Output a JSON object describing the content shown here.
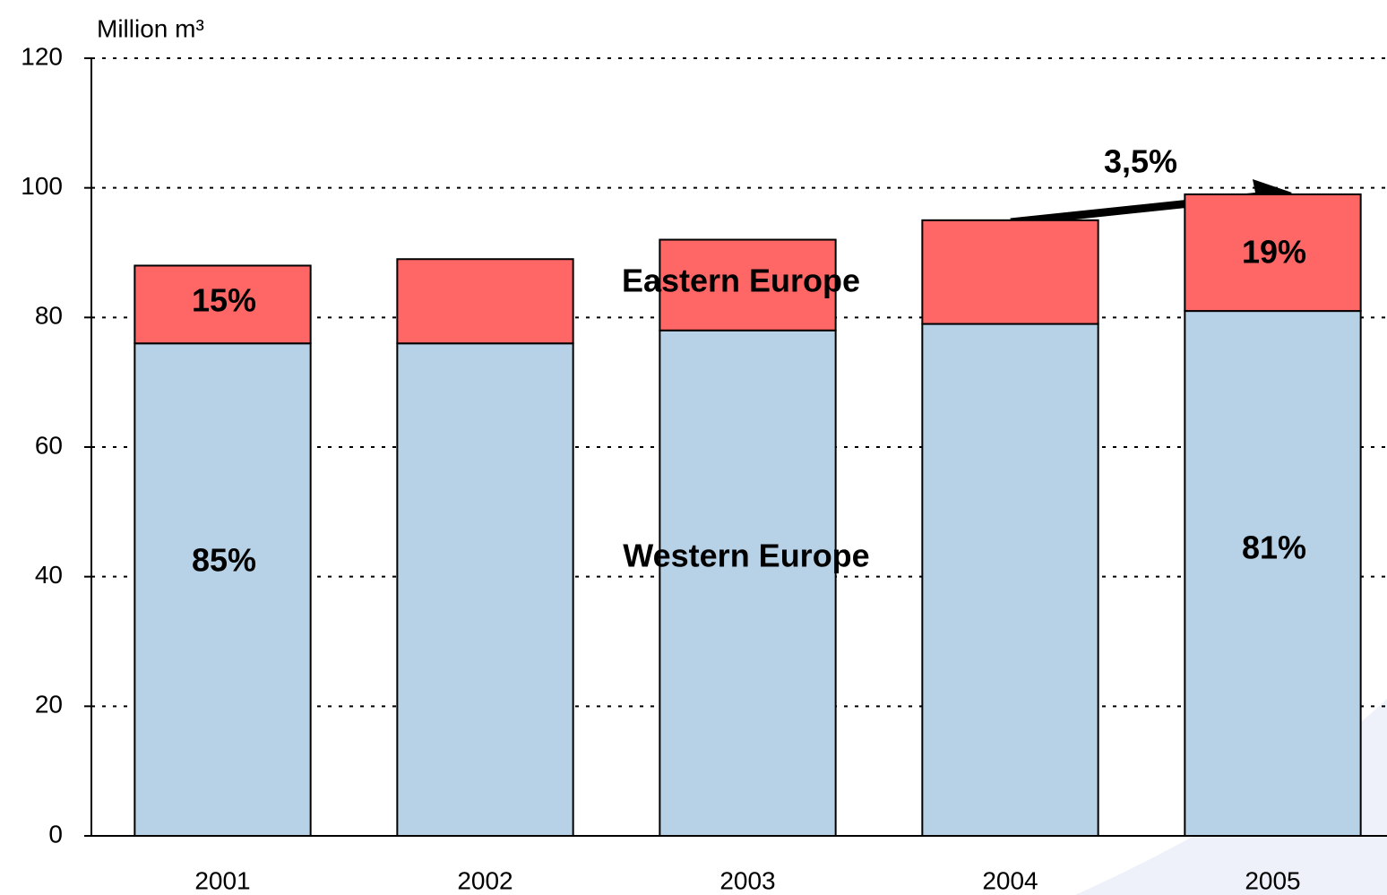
{
  "chart_data": {
    "type": "stacked_bar",
    "y_axis_label": "Million m³",
    "categories": [
      "2001",
      "2002",
      "2003",
      "2004",
      "2005"
    ],
    "series": [
      {
        "name": "Western Europe",
        "color": "#b7d1e6",
        "values": [
          76,
          76,
          78,
          79,
          81
        ]
      },
      {
        "name": "Eastern Europe",
        "color": "#ff6666",
        "values": [
          12,
          13,
          14,
          16,
          18
        ]
      }
    ],
    "ylim": [
      0,
      120
    ],
    "yticks": [
      0,
      20,
      40,
      60,
      80,
      100,
      120
    ],
    "grid": true,
    "annotations": [
      "85%",
      "15%",
      "81%",
      "19%",
      "3,5%"
    ]
  }
}
